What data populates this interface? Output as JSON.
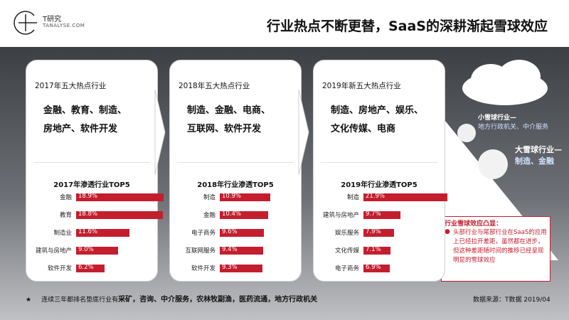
{
  "logo": {
    "name": "T研究",
    "sub": "TANALYSE.COM"
  },
  "title": "行业热点不断更替，SaaS的深耕渐起雪球效应",
  "panels": [
    {
      "title": "2017年五大热点行业",
      "hot_line1": "金融、教育、制造、",
      "hot_line2": "房地产、软件开发",
      "chart_title": "2017年渗透行业TOP5",
      "labels": [
        "金融",
        "教育",
        "制造业",
        "建筑与房地产",
        "软件开发"
      ],
      "value_labels": [
        "18.9%",
        "18.8%",
        "11.6%",
        "9.0%",
        "6.2%"
      ]
    },
    {
      "title": "2018年五大热点行业",
      "hot_line1": "制造、金融、电商、",
      "hot_line2": "互联网、软件开发",
      "chart_title": "2018年行业渗透TOP5",
      "labels": [
        "制造",
        "金融",
        "电子商务",
        "互联网服务",
        "软件开发"
      ],
      "value_labels": [
        "10.9%",
        "10.4%",
        "9.6%",
        "9.4%",
        "9.3%"
      ]
    },
    {
      "title": "2019年新五大热点行业",
      "hot_line1": "制造、房地产、娱乐、",
      "hot_line2": "文化传媒、电商",
      "chart_title": "2019年行业渗透TOP5",
      "labels": [
        "制造",
        "建筑与房地产",
        "娱乐服务",
        "文化传媒",
        "电子商务"
      ],
      "value_labels": [
        "21.9%",
        "9.7%",
        "7.9%",
        "7.1%",
        "6.9%"
      ]
    }
  ],
  "chart_data": [
    {
      "type": "bar",
      "title": "2017年渗透行业TOP5",
      "categories": [
        "金融",
        "教育",
        "制造业",
        "建筑与房地产",
        "软件开发"
      ],
      "values": [
        18.9,
        18.8,
        11.6,
        9.0,
        6.2
      ],
      "color": "#c41e2e"
    },
    {
      "type": "bar",
      "title": "2018年行业渗透TOP5",
      "categories": [
        "制造",
        "金融",
        "电子商务",
        "互联网服务",
        "软件开发"
      ],
      "values": [
        10.9,
        10.4,
        9.6,
        9.4,
        9.3
      ],
      "color": "#c41e2e"
    },
    {
      "type": "bar",
      "title": "2019年行业渗透TOP5",
      "categories": [
        "制造",
        "建筑与房地产",
        "娱乐服务",
        "文化传媒",
        "电子商务"
      ],
      "values": [
        21.9,
        9.7,
        7.9,
        7.1,
        6.9
      ],
      "color": "#c41e2e"
    }
  ],
  "snowball": {
    "small_title": "小雪球行业—",
    "small_desc": "地方行政机关、中介服务",
    "big_title": "大雪球行业—",
    "big_desc": "制造、金融"
  },
  "effect": {
    "title": "行业雪球效应凸显：",
    "bullet": "●",
    "body": "头部行业与尾部行业在SaaS的应用上已经拉开差距，虽然都在进步，但这种差距随时间的推移已经呈现明显的雪球效应"
  },
  "footnote": {
    "star": "★",
    "prefix": "连续三年都排名垫底行业有",
    "bold": "采矿，咨询、中介服务，农林牧副渔，医药流通，地方行政机关"
  },
  "source": "数据来源：T数据 2019/04"
}
